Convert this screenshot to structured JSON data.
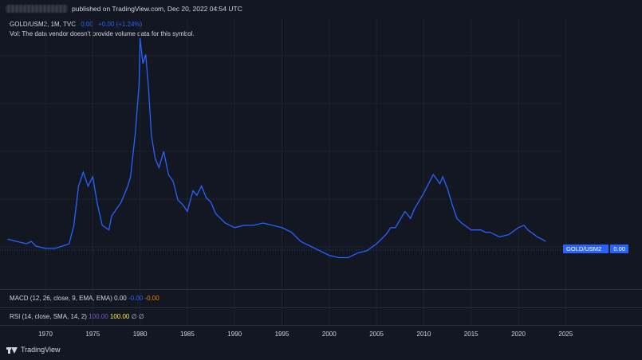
{
  "header": {
    "published": "published on TradingView.com, Dec 20, 2022 04:54 UTC"
  },
  "legend": {
    "symbol": "GOLD/USM2, 1M, TVC",
    "value": "0.00",
    "change": "+0.00 (+1.24%)",
    "volume_note": "Vol: The data vendor doesn't provide volume data for this symbol."
  },
  "price_tag": {
    "symbol": "GOLD/USM2",
    "value": "0.00"
  },
  "macd": {
    "label": "MACD (12, 26, close, 9, EMA, EMA)",
    "v1": "0.00",
    "v2": "-0.00",
    "v3": "-0.00"
  },
  "rsi": {
    "label": "RSI (14, close, SMA, 14, 2)",
    "v1": "100.00",
    "v2": "100.00",
    "v3": "∅",
    "v4": "∅"
  },
  "footer": {
    "brand": "TradingView"
  },
  "colors": {
    "line": "#2962ff",
    "background": "#131722",
    "grid": "#1e222d"
  },
  "chart_data": {
    "type": "line",
    "title": "",
    "xlabel": "",
    "ylabel": "",
    "x_ticks": [
      "1970",
      "1975",
      "1980",
      "1985",
      "1990",
      "1995",
      "2000",
      "2005",
      "2010",
      "2015",
      "2020",
      "2025"
    ],
    "xlim": [
      1966,
      2028
    ],
    "ylim": [
      0,
      1
    ],
    "grid": true,
    "series": [
      {
        "values_note_free": true,
        "x": [
          1966.0,
          1967.0,
          1968.0,
          1968.5,
          1969.0,
          1970.0,
          1971.0,
          1971.8,
          1972.5,
          1973.0,
          1973.5,
          1974.0,
          1974.5,
          1975.0,
          1975.5,
          1976.0,
          1976.7,
          1977.0,
          1978.0,
          1978.7,
          1979.0,
          1979.5,
          1979.9,
          1980.0,
          1980.3,
          1980.6,
          1980.9,
          1981.2,
          1981.6,
          1982.0,
          1982.5,
          1983.0,
          1983.5,
          1984.0,
          1984.5,
          1985.0,
          1985.6,
          1986.0,
          1986.5,
          1987.0,
          1987.5,
          1988.0,
          1989.0,
          1990.0,
          1991.0,
          1992.0,
          1993.0,
          1994.0,
          1995.0,
          1996.0,
          1997.0,
          1998.0,
          1999.0,
          2000.0,
          2001.0,
          2002.0,
          2003.0,
          2004.0,
          2005.0,
          2006.0,
          2006.5,
          2007.0,
          2008.0,
          2008.6,
          2009.0,
          2010.0,
          2011.0,
          2011.7,
          2012.0,
          2012.5,
          2013.0,
          2013.5,
          2014.0,
          2015.0,
          2016.0,
          2016.5,
          2017.0,
          2018.0,
          2019.0,
          2020.0,
          2020.6,
          2021.0,
          2022.0,
          2022.5,
          2022.9
        ],
        "y": [
          0.13,
          0.12,
          0.11,
          0.12,
          0.1,
          0.09,
          0.09,
          0.1,
          0.11,
          0.19,
          0.36,
          0.42,
          0.36,
          0.4,
          0.28,
          0.19,
          0.17,
          0.23,
          0.29,
          0.36,
          0.4,
          0.59,
          0.8,
          1.0,
          0.89,
          0.93,
          0.78,
          0.58,
          0.48,
          0.44,
          0.51,
          0.41,
          0.38,
          0.3,
          0.28,
          0.25,
          0.34,
          0.32,
          0.36,
          0.31,
          0.29,
          0.24,
          0.2,
          0.18,
          0.19,
          0.19,
          0.2,
          0.19,
          0.18,
          0.16,
          0.12,
          0.1,
          0.08,
          0.06,
          0.05,
          0.05,
          0.07,
          0.08,
          0.11,
          0.15,
          0.18,
          0.18,
          0.25,
          0.22,
          0.26,
          0.33,
          0.41,
          0.37,
          0.4,
          0.35,
          0.28,
          0.22,
          0.2,
          0.17,
          0.17,
          0.16,
          0.16,
          0.14,
          0.15,
          0.18,
          0.19,
          0.17,
          0.14,
          0.13,
          0.12
        ]
      }
    ]
  }
}
